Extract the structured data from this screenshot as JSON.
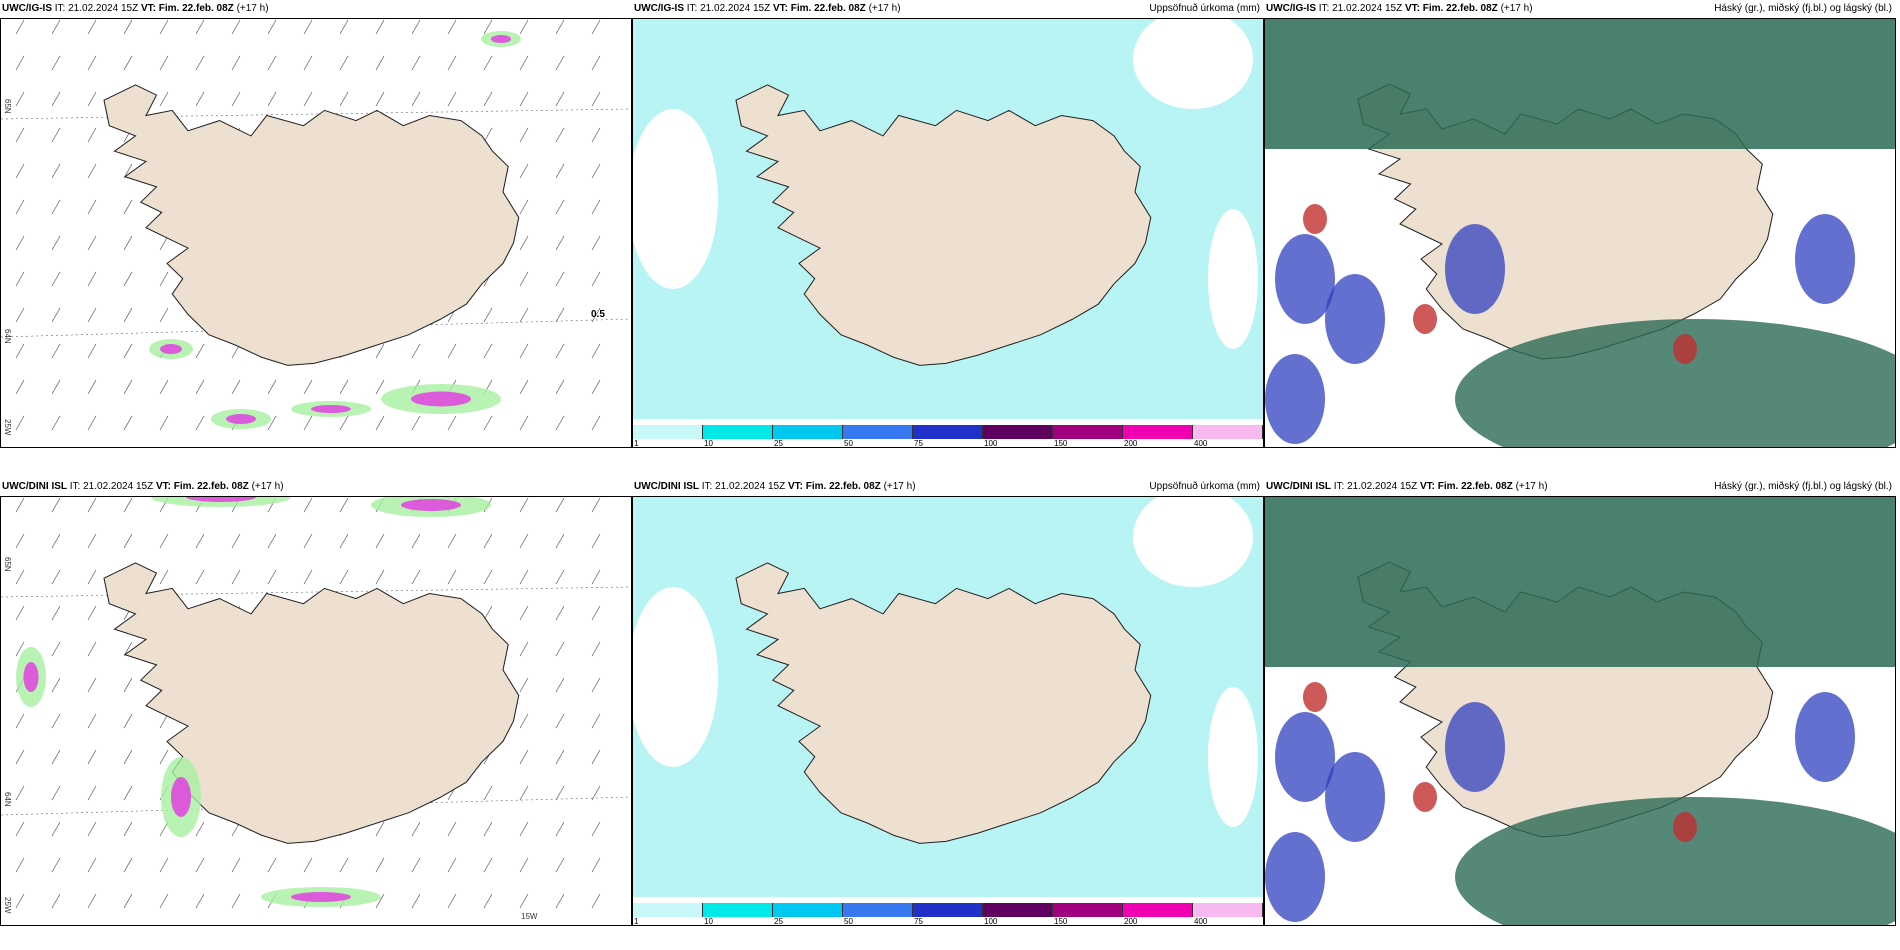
{
  "panels": [
    {
      "id": "p1",
      "model": "UWC/IG-IS",
      "it": "IT: 21.02.2024 15Z",
      "vt_label": "VT:",
      "vt": "Fim. 22.feb. 08Z",
      "lead": "(+17 h)",
      "title_right": "",
      "type": "wind"
    },
    {
      "id": "p2",
      "model": "UWC/IG-IS",
      "it": "IT: 21.02.2024 15Z",
      "vt_label": "VT:",
      "vt": "Fim. 22.feb. 08Z",
      "lead": "(+17 h)",
      "title_right": "Uppsöfnuð úrkoma (mm)",
      "type": "precip"
    },
    {
      "id": "p3",
      "model": "UWC/IG-IS",
      "it": "IT: 21.02.2024 15Z",
      "vt_label": "VT:",
      "vt": "Fim. 22.feb. 08Z",
      "lead": "(+17 h)",
      "title_right": "Háský (gr.), miðský (fj.bl.) og lágský (bl.)",
      "type": "cloud"
    },
    {
      "id": "p4",
      "model": "UWC/DINI ISL",
      "it": "IT: 21.02.2024 15Z",
      "vt_label": "VT:",
      "vt": "Fim. 22.feb. 08Z",
      "lead": "(+17 h)",
      "title_right": "",
      "type": "wind"
    },
    {
      "id": "p5",
      "model": "UWC/DINI ISL",
      "it": "IT: 21.02.2024 15Z",
      "vt_label": "VT:",
      "vt": "Fim. 22.feb. 08Z",
      "lead": "(+17 h)",
      "title_right": "Uppsöfnuð úrkoma (mm)",
      "type": "precip"
    },
    {
      "id": "p6",
      "model": "UWC/DINI ISL",
      "it": "IT: 21.02.2024 15Z",
      "vt_label": "VT:",
      "vt": "Fim. 22.feb. 08Z",
      "lead": "(+17 h)",
      "title_right": "Háský (gr.), miðský (fj.bl.) og lágský (bl.)",
      "type": "cloud"
    }
  ],
  "colorbar": {
    "ticks": [
      "1",
      "10",
      "25",
      "50",
      "75",
      "100",
      "150",
      "200",
      "400"
    ],
    "colors": [
      "#c8f8f8",
      "#00e8e8",
      "#00c8f0",
      "#3878f0",
      "#2030c8",
      "#600060",
      "#a00080",
      "#f000b0",
      "#f8b8f0"
    ]
  },
  "axis_labels": {
    "lat1": "65N",
    "lat2": "64N",
    "lon": "25W",
    "lon2": "15W",
    "wind_val": "0.5"
  },
  "colors": {
    "land": "#eee0d0",
    "precip_light": "#b8f4f4",
    "high_cloud": "#2a6a55",
    "low_cloud": "#3040c0",
    "mid_cloud": "#c03030"
  }
}
